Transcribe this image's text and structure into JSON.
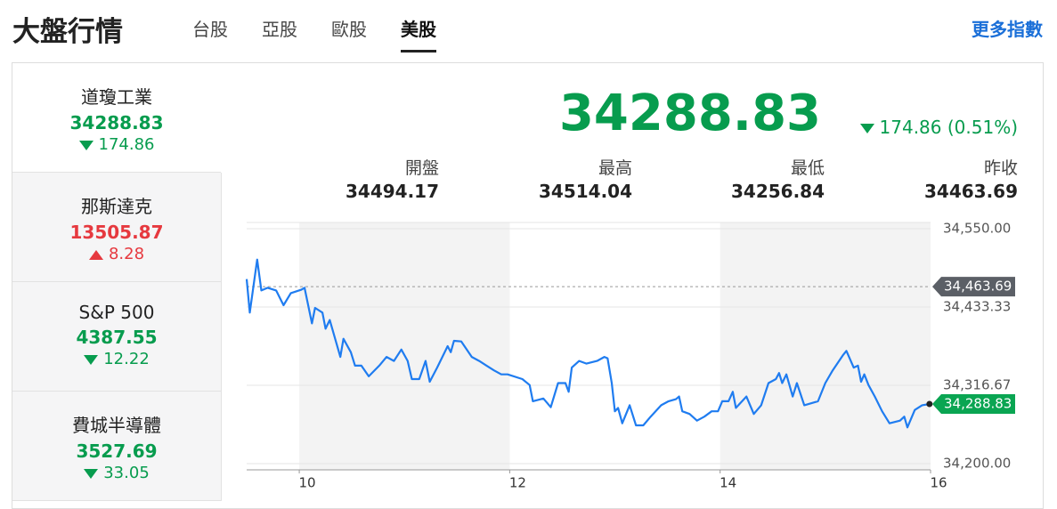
{
  "header": {
    "title": "大盤行情",
    "tabs": [
      "台股",
      "亞股",
      "歐股",
      "美股"
    ],
    "active_tab": 3,
    "more": "更多指數"
  },
  "sidebar": {
    "active": 0,
    "items": [
      {
        "name": "道瓊工業",
        "value": "34288.83",
        "change": "174.86",
        "direction": "down"
      },
      {
        "name": "那斯達克",
        "value": "13505.87",
        "change": "8.28",
        "direction": "up"
      },
      {
        "name": "S&P 500",
        "value": "4387.55",
        "change": "12.22",
        "direction": "down"
      },
      {
        "name": "費城半導體",
        "value": "3527.69",
        "change": "33.05",
        "direction": "down"
      }
    ]
  },
  "quote": {
    "price": "34288.83",
    "change": "174.86 (0.51%)",
    "direction": "down",
    "stats": [
      {
        "label": "開盤",
        "value": "34494.17"
      },
      {
        "label": "最高",
        "value": "34514.04"
      },
      {
        "label": "最低",
        "value": "34256.84"
      },
      {
        "label": "昨收",
        "value": "34463.69"
      }
    ]
  },
  "chart": {
    "type": "line",
    "color": "#1f7cf0",
    "xlim": [
      9.5,
      16
    ],
    "xticks": [
      10,
      12,
      14,
      16
    ],
    "shaded": [
      [
        10,
        12
      ],
      [
        14,
        16
      ]
    ],
    "ylim": [
      34200,
      34550
    ],
    "yticks": [
      {
        "value": 34200,
        "label": "34,200.00"
      },
      {
        "value": 34316.67,
        "label": "34,316.67"
      },
      {
        "value": 34433.33,
        "label": "34,433.33"
      },
      {
        "value": 34550,
        "label": "34,550.00"
      }
    ],
    "prev_close": {
      "value": 34463.69,
      "label": "34,463.69"
    },
    "last": {
      "value": 34288.83,
      "label": "34,288.83"
    },
    "x": [
      9.5,
      9.53,
      9.6,
      9.64,
      9.7,
      9.78,
      9.85,
      9.92,
      10.02,
      10.05,
      10.12,
      10.15,
      10.22,
      10.25,
      10.29,
      10.39,
      10.42,
      10.49,
      10.53,
      10.59,
      10.66,
      10.76,
      10.83,
      10.9,
      10.97,
      11.03,
      11.07,
      11.14,
      11.2,
      11.24,
      11.31,
      11.41,
      11.44,
      11.47,
      11.54,
      11.64,
      11.71,
      11.78,
      11.85,
      11.92,
      11.98,
      12.12,
      12.19,
      12.22,
      12.32,
      12.39,
      12.46,
      12.53,
      12.56,
      12.59,
      12.66,
      12.73,
      12.83,
      12.9,
      12.93,
      12.97,
      13.0,
      13.03,
      13.07,
      13.14,
      13.2,
      13.27,
      13.34,
      13.44,
      13.51,
      13.58,
      13.61,
      13.64,
      13.71,
      13.78,
      13.85,
      13.92,
      13.98,
      14.02,
      14.08,
      14.12,
      14.15,
      14.25,
      14.32,
      14.39,
      14.46,
      14.53,
      14.56,
      14.59,
      14.63,
      14.69,
      14.73,
      14.8,
      14.93,
      15.0,
      15.07,
      15.17,
      15.2,
      15.27,
      15.31,
      15.34,
      15.37,
      15.41,
      15.47,
      15.54,
      15.61,
      15.71,
      15.75,
      15.78,
      15.85,
      15.92,
      15.99
    ],
    "values": [
      34475,
      34425,
      34504,
      34458,
      34462,
      34458,
      34436,
      34454,
      34459,
      34462,
      34409,
      34432,
      34425,
      34401,
      34414,
      34359,
      34386,
      34366,
      34346,
      34346,
      34330,
      34346,
      34359,
      34353,
      34370,
      34353,
      34326,
      34326,
      34353,
      34322,
      34343,
      34375,
      34366,
      34383,
      34382,
      34359,
      34353,
      34346,
      34339,
      34333,
      34333,
      34326,
      34317,
      34293,
      34297,
      34284,
      34320,
      34320,
      34307,
      34343,
      34353,
      34349,
      34353,
      34359,
      34357,
      34320,
      34278,
      34283,
      34260,
      34287,
      34257,
      34257,
      34270,
      34287,
      34293,
      34296,
      34300,
      34278,
      34274,
      34264,
      34270,
      34278,
      34278,
      34293,
      34293,
      34307,
      34283,
      34300,
      34274,
      34287,
      34320,
      34326,
      34335,
      34320,
      34333,
      34300,
      34320,
      34287,
      34293,
      34320,
      34339,
      34362,
      34368,
      34343,
      34346,
      34322,
      34333,
      34317,
      34300,
      34278,
      34260,
      34264,
      34270,
      34254,
      34280,
      34287,
      34288.83
    ]
  }
}
